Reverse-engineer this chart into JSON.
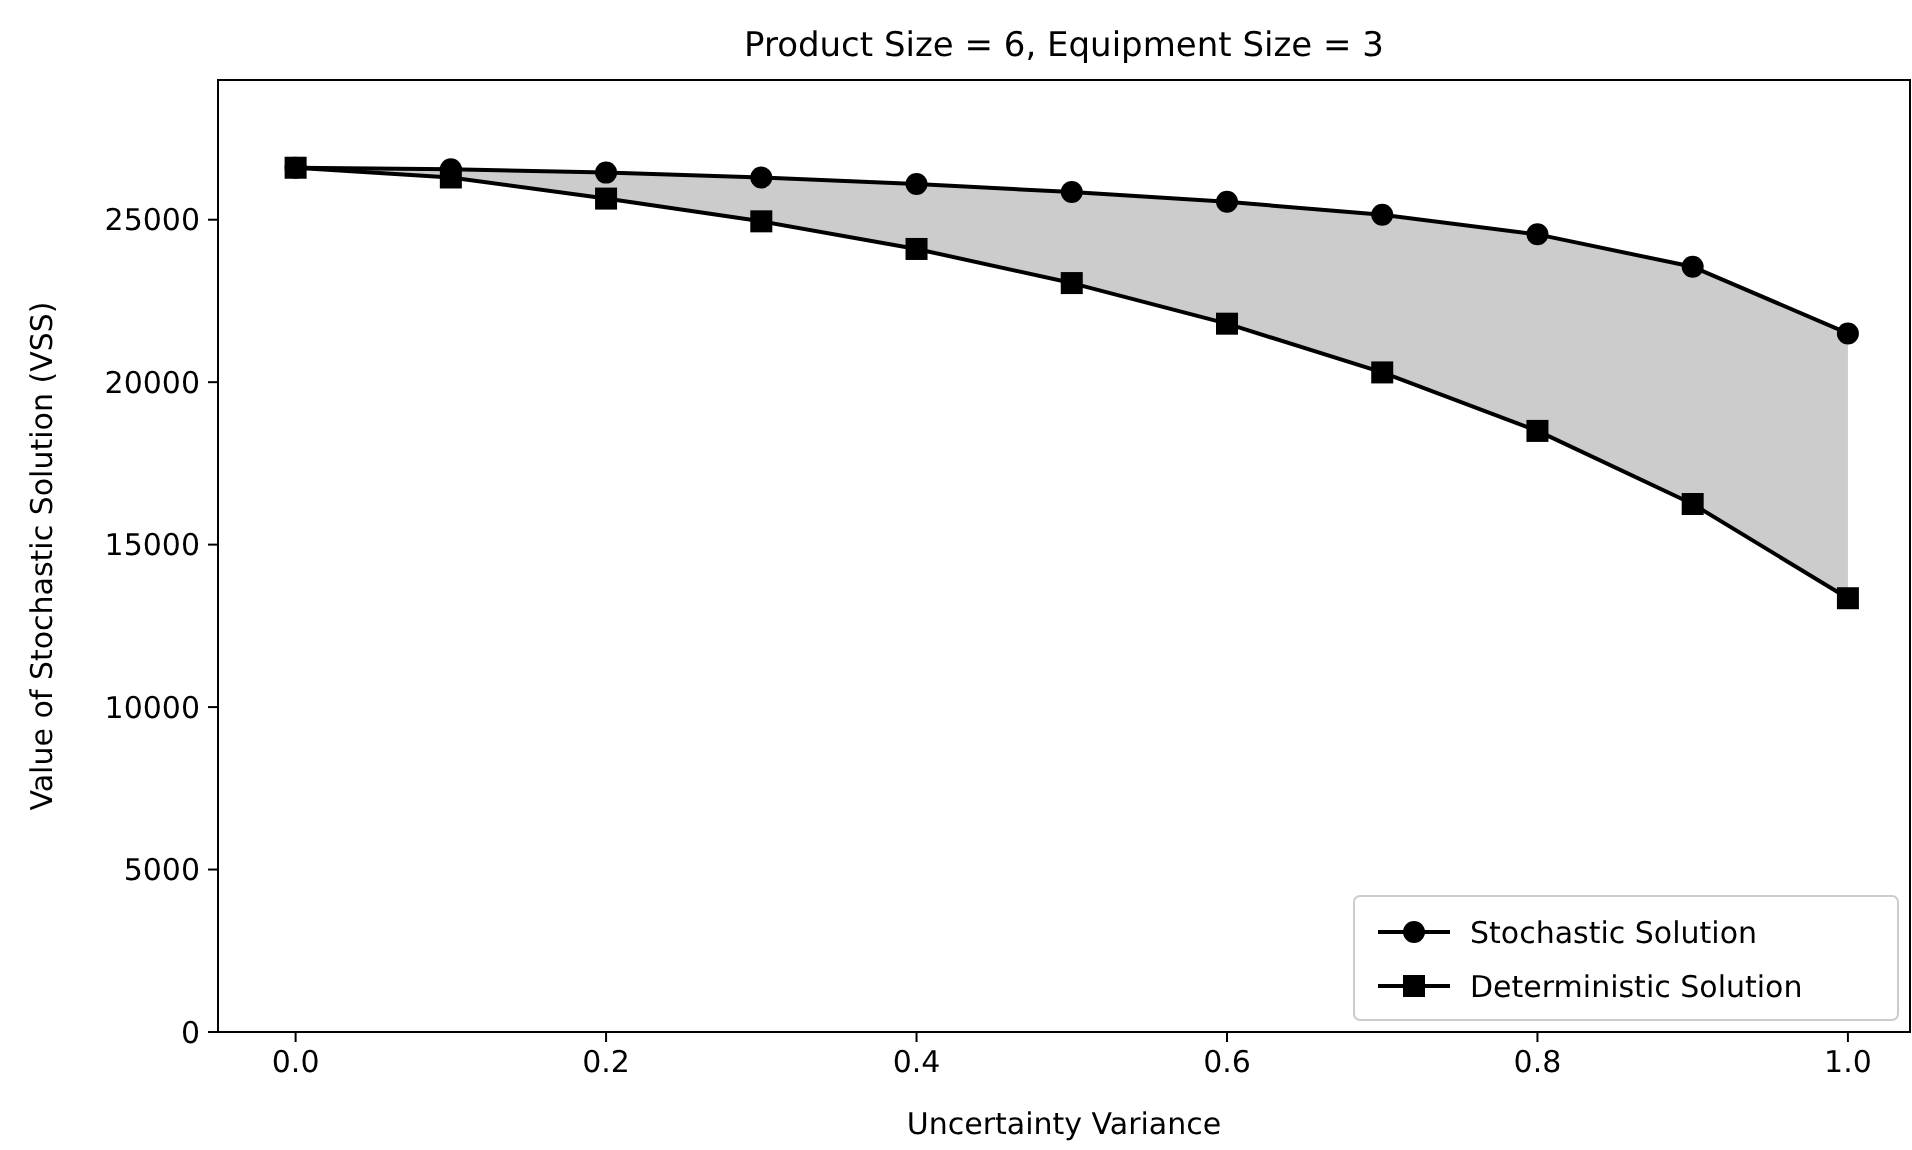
{
  "chart_data": {
    "type": "line",
    "title": "Product Size = 6, Equipment Size = 3",
    "xlabel": "Uncertainty Variance",
    "ylabel": "Value of Stochastic Solution (VSS)",
    "x": [
      0,
      0.1,
      0.2,
      0.3,
      0.4,
      0.5,
      0.6,
      0.7,
      0.8,
      0.9,
      1.0
    ],
    "series": [
      {
        "name": "Stochastic Solution",
        "color": "#000000",
        "marker": "circle",
        "values": [
          26600,
          26550,
          26450,
          26300,
          26100,
          25850,
          25550,
          25150,
          24550,
          23550,
          21500
        ],
        "lower": [
          26600,
          26300,
          25650,
          24950,
          24100,
          23050,
          21800,
          20300,
          18500,
          16250,
          13350
        ],
        "upper": [
          26600,
          26550,
          26450,
          26300,
          26100,
          25850,
          25550,
          25150,
          24550,
          23550,
          21500
        ]
      },
      {
        "name": "Deterministic Solution",
        "color": "#000000",
        "marker": "square",
        "values": [
          26600,
          26300,
          25650,
          24950,
          24100,
          23050,
          21800,
          20300,
          18500,
          16250,
          13350
        ]
      }
    ],
    "xlim": [
      -0.05,
      1.04
    ],
    "xticks": [
      {
        "value": 0,
        "label": "0.0"
      },
      {
        "value": 0.2,
        "label": "0.2"
      },
      {
        "value": 0.4,
        "label": "0.4"
      },
      {
        "value": 0.6,
        "label": "0.6"
      },
      {
        "value": 0.8,
        "label": "0.8"
      },
      {
        "value": 1.0,
        "label": "1.0"
      }
    ],
    "ylim": [
      0,
      29300
    ],
    "yticks": [
      0,
      5000,
      10000,
      15000,
      20000,
      25000
    ],
    "grid": false,
    "legend": "bottom right",
    "line_style": "solid"
  }
}
